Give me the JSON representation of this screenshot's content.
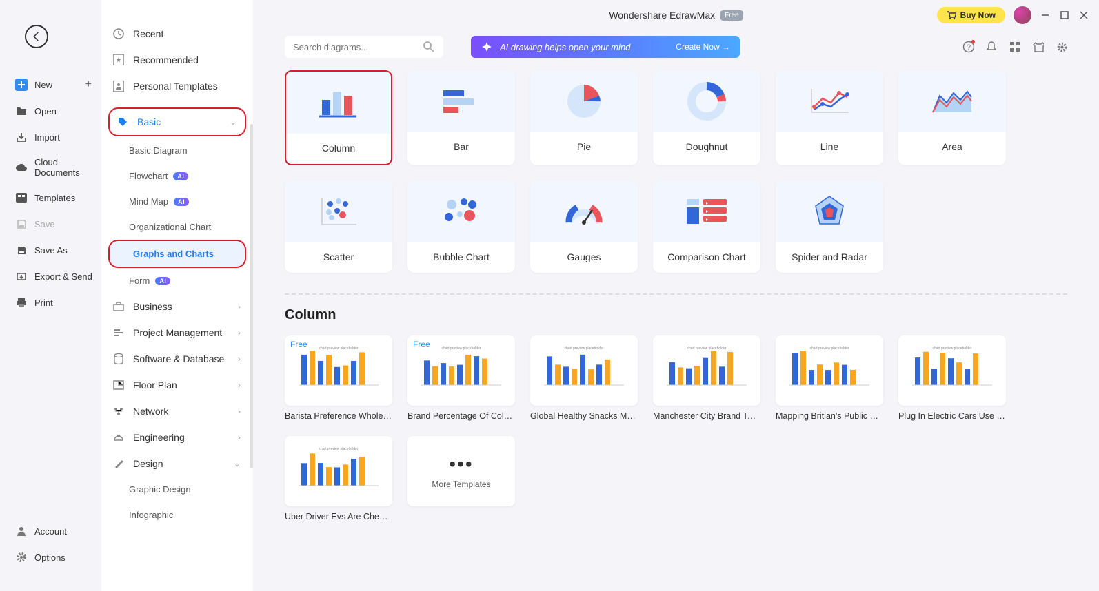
{
  "app": {
    "title": "Wondershare EdrawMax",
    "free_badge": "Free",
    "buy_now": "Buy Now"
  },
  "far_left": {
    "items": [
      {
        "label": "New",
        "icon": "plus-box"
      },
      {
        "label": "Open",
        "icon": "folder"
      },
      {
        "label": "Import",
        "icon": "import"
      },
      {
        "label": "Cloud Documents",
        "icon": "cloud"
      },
      {
        "label": "Templates",
        "icon": "templates"
      },
      {
        "label": "Save",
        "icon": "save"
      },
      {
        "label": "Save As",
        "icon": "save-as"
      },
      {
        "label": "Export & Send",
        "icon": "export"
      },
      {
        "label": "Print",
        "icon": "print"
      }
    ],
    "bottom": [
      {
        "label": "Account",
        "icon": "account"
      },
      {
        "label": "Options",
        "icon": "options"
      }
    ]
  },
  "categories": {
    "top": [
      {
        "label": "Recent",
        "icon": "clock"
      },
      {
        "label": "Recommended",
        "icon": "star-box"
      },
      {
        "label": "Personal Templates",
        "icon": "person-box"
      }
    ],
    "basic": {
      "label": "Basic",
      "subs": [
        {
          "label": "Basic Diagram"
        },
        {
          "label": "Flowchart",
          "ai": true
        },
        {
          "label": "Mind Map",
          "ai": true
        },
        {
          "label": "Organizational Chart"
        },
        {
          "label": "Graphs and Charts",
          "active": true
        },
        {
          "label": "Form",
          "ai": true
        }
      ]
    },
    "other": [
      {
        "label": "Business"
      },
      {
        "label": "Project Management"
      },
      {
        "label": "Software & Database"
      },
      {
        "label": "Floor Plan"
      },
      {
        "label": "Network"
      },
      {
        "label": "Engineering"
      },
      {
        "label": "Design"
      }
    ],
    "design_subs": [
      {
        "label": "Graphic Design"
      },
      {
        "label": "Infographic"
      }
    ]
  },
  "search": {
    "placeholder": "Search diagrams..."
  },
  "ai_banner": {
    "text": "AI drawing helps open your mind",
    "cta": "Create Now →"
  },
  "chart_types": [
    {
      "label": "Column",
      "icon": "column",
      "highlighted": true
    },
    {
      "label": "Bar",
      "icon": "bar"
    },
    {
      "label": "Pie",
      "icon": "pie"
    },
    {
      "label": "Doughnut",
      "icon": "doughnut"
    },
    {
      "label": "Line",
      "icon": "line"
    },
    {
      "label": "Area",
      "icon": "area"
    },
    {
      "label": "Scatter",
      "icon": "scatter"
    },
    {
      "label": "Bubble Chart",
      "icon": "bubble"
    },
    {
      "label": "Gauges",
      "icon": "gauge"
    },
    {
      "label": "Comparison Chart",
      "icon": "comparison"
    },
    {
      "label": "Spider and Radar",
      "icon": "radar"
    }
  ],
  "section": {
    "title": "Column"
  },
  "templates": [
    {
      "label": "Barista Preference Whole …",
      "free": true
    },
    {
      "label": "Brand Percentage Of Cola …",
      "free": true
    },
    {
      "label": "Global Healthy Snacks Mar…"
    },
    {
      "label": "Manchester City Brand Tea…"
    },
    {
      "label": "Mapping Britian's Public Fi…"
    },
    {
      "label": "Plug In Electric Cars Use In …"
    },
    {
      "label": "Uber Driver Evs Are Cheap…"
    }
  ],
  "more_templates": "More Templates",
  "colors": {
    "blue": "#3366d6",
    "red": "#e8555a",
    "lightblue": "#b5d4f5",
    "paleblue": "#d6e6fa",
    "annotation": "#d81e2a"
  }
}
